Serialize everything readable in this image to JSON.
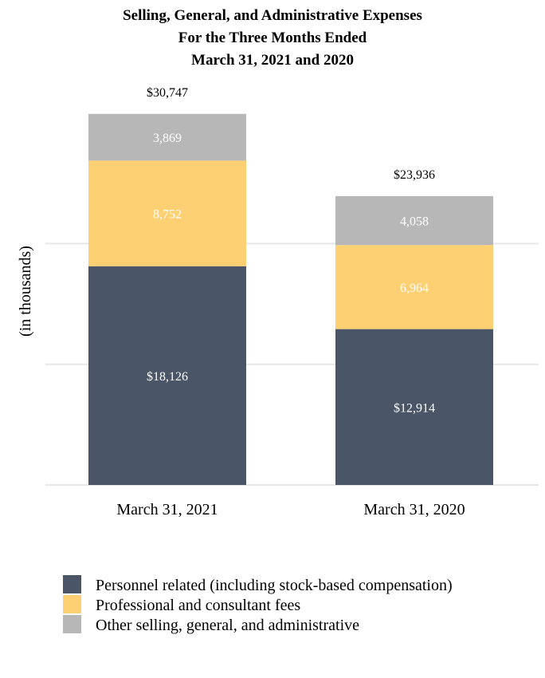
{
  "chart_data": {
    "type": "bar",
    "stacked": true,
    "title": "Selling, General, and Administrative Expenses",
    "subtitle_lines": [
      "For the Three Months Ended",
      "March 31, 2021 and 2020"
    ],
    "xlabel": "",
    "ylabel": "(in thousands)",
    "ylim": [
      0,
      35000
    ],
    "gridlines": [
      0,
      10000,
      20000
    ],
    "grid": true,
    "legend_position": "bottom-left",
    "categories": [
      "March 31, 2021",
      "March 31, 2020"
    ],
    "totals": [
      30747,
      23936
    ],
    "total_labels": [
      "$30,747",
      "$23,936"
    ],
    "series": [
      {
        "name": "Personnel related (including stock-based compensation)",
        "color": "#4a5568",
        "values": [
          18126,
          12914
        ],
        "labels": [
          "$18,126",
          "$12,914"
        ]
      },
      {
        "name": "Professional and consultant fees",
        "color": "#fdd073",
        "values": [
          8752,
          6964
        ],
        "labels": [
          "8,752",
          "6,964"
        ]
      },
      {
        "name": "Other selling, general, and administrative",
        "color": "#b7b7b7",
        "values": [
          3869,
          4058
        ],
        "labels": [
          "3,869",
          "4,058"
        ]
      }
    ]
  }
}
